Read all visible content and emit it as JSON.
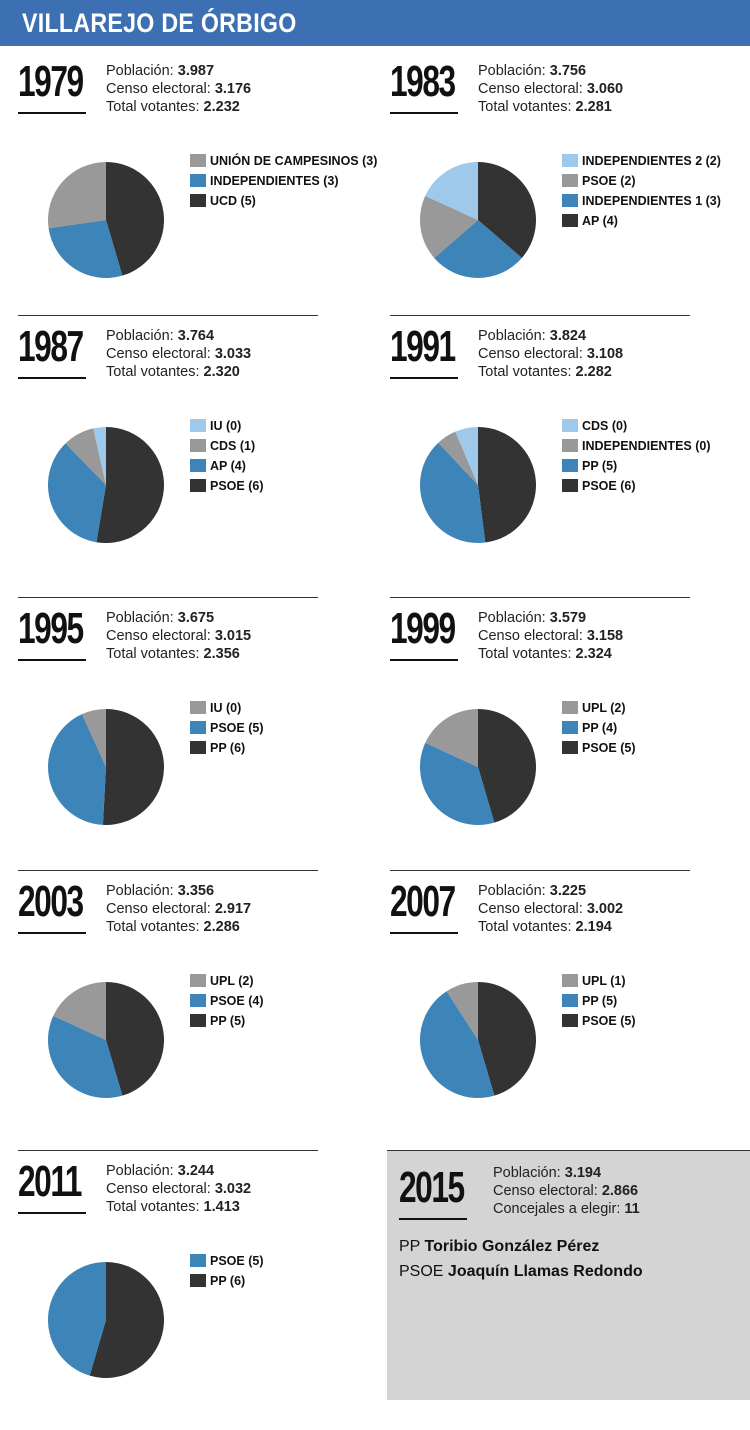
{
  "title": "VILLAREJO DE ÓRBIGO",
  "labels": {
    "poblacion": "Población:",
    "censo": "Censo electoral:",
    "votantes": "Total votantes:",
    "concejales": "Concejales a elegir:"
  },
  "colors": {
    "lightblue": "#9ec9eb",
    "gray": "#999999",
    "blue": "#3d85b8",
    "dark": "#333333"
  },
  "chart_data": [
    {
      "type": "pie",
      "year": "1979",
      "poblacion": "3.987",
      "censo": "3.176",
      "votantes": "2.232",
      "slices": [
        {
          "label": "UNIÓN DE CAMPESINOS (3)",
          "value": 3,
          "color": "#999999"
        },
        {
          "label": "INDEPENDIENTES (3)",
          "value": 3,
          "color": "#3d85b8"
        },
        {
          "label": "UCD (5)",
          "value": 5,
          "color": "#333333"
        }
      ]
    },
    {
      "type": "pie",
      "year": "1983",
      "poblacion": "3.756",
      "censo": "3.060",
      "votantes": "2.281",
      "slices": [
        {
          "label": "INDEPENDIENTES 2 (2)",
          "value": 2,
          "color": "#9ec9eb"
        },
        {
          "label": "PSOE (2)",
          "value": 2,
          "color": "#999999"
        },
        {
          "label": "INDEPENDIENTES 1 (3)",
          "value": 3,
          "color": "#3d85b8"
        },
        {
          "label": "AP (4)",
          "value": 4,
          "color": "#333333"
        }
      ]
    },
    {
      "type": "pie",
      "year": "1987",
      "poblacion": "3.764",
      "censo": "3.033",
      "votantes": "2.320",
      "slices": [
        {
          "label": "IU (0)",
          "value": 0.4,
          "color": "#9ec9eb"
        },
        {
          "label": "CDS (1)",
          "value": 1,
          "color": "#999999"
        },
        {
          "label": "AP (4)",
          "value": 4,
          "color": "#3d85b8"
        },
        {
          "label": "PSOE (6)",
          "value": 6,
          "color": "#333333"
        }
      ]
    },
    {
      "type": "pie",
      "year": "1991",
      "poblacion": "3.824",
      "censo": "3.108",
      "votantes": "2.282",
      "slices": [
        {
          "label": "CDS (0)",
          "value": 0.8,
          "color": "#9ec9eb"
        },
        {
          "label": "INDEPENDIENTES (0)",
          "value": 0.7,
          "color": "#999999"
        },
        {
          "label": "PP (5)",
          "value": 5,
          "color": "#3d85b8"
        },
        {
          "label": "PSOE (6)",
          "value": 6,
          "color": "#333333"
        }
      ]
    },
    {
      "type": "pie",
      "year": "1995",
      "poblacion": "3.675",
      "censo": "3.015",
      "votantes": "2.356",
      "slices": [
        {
          "label": "IU (0)",
          "value": 0.8,
          "color": "#999999"
        },
        {
          "label": "PSOE (5)",
          "value": 5,
          "color": "#3d85b8"
        },
        {
          "label": "PP (6)",
          "value": 6,
          "color": "#333333"
        }
      ]
    },
    {
      "type": "pie",
      "year": "1999",
      "poblacion": "3.579",
      "censo": "3.158",
      "votantes": "2.324",
      "slices": [
        {
          "label": "UPL (2)",
          "value": 2,
          "color": "#999999"
        },
        {
          "label": "PP (4)",
          "value": 4,
          "color": "#3d85b8"
        },
        {
          "label": "PSOE (5)",
          "value": 5,
          "color": "#333333"
        }
      ]
    },
    {
      "type": "pie",
      "year": "2003",
      "poblacion": "3.356",
      "censo": "2.917",
      "votantes": "2.286",
      "slices": [
        {
          "label": "UPL (2)",
          "value": 2,
          "color": "#999999"
        },
        {
          "label": "PSOE (4)",
          "value": 4,
          "color": "#3d85b8"
        },
        {
          "label": "PP (5)",
          "value": 5,
          "color": "#333333"
        }
      ]
    },
    {
      "type": "pie",
      "year": "2007",
      "poblacion": "3.225",
      "censo": "3.002",
      "votantes": "2.194",
      "slices": [
        {
          "label": "UPL (1)",
          "value": 1,
          "color": "#999999"
        },
        {
          "label": "PP (5)",
          "value": 5,
          "color": "#3d85b8"
        },
        {
          "label": "PSOE (5)",
          "value": 5,
          "color": "#333333"
        }
      ]
    },
    {
      "type": "pie",
      "year": "2011",
      "poblacion": "3.244",
      "censo": "3.032",
      "votantes": "1.413",
      "slices": [
        {
          "label": "PSOE (5)",
          "value": 5,
          "color": "#3d85b8"
        },
        {
          "label": "PP (6)",
          "value": 6,
          "color": "#333333"
        }
      ]
    }
  ],
  "y2015": {
    "year": "2015",
    "poblacion": "3.194",
    "censo": "2.866",
    "concejales": "11",
    "candidates": [
      {
        "party": "PP",
        "name": "Toribio González Pérez"
      },
      {
        "party": "PSOE",
        "name": "Joaquín Llamas Redondo"
      }
    ]
  }
}
